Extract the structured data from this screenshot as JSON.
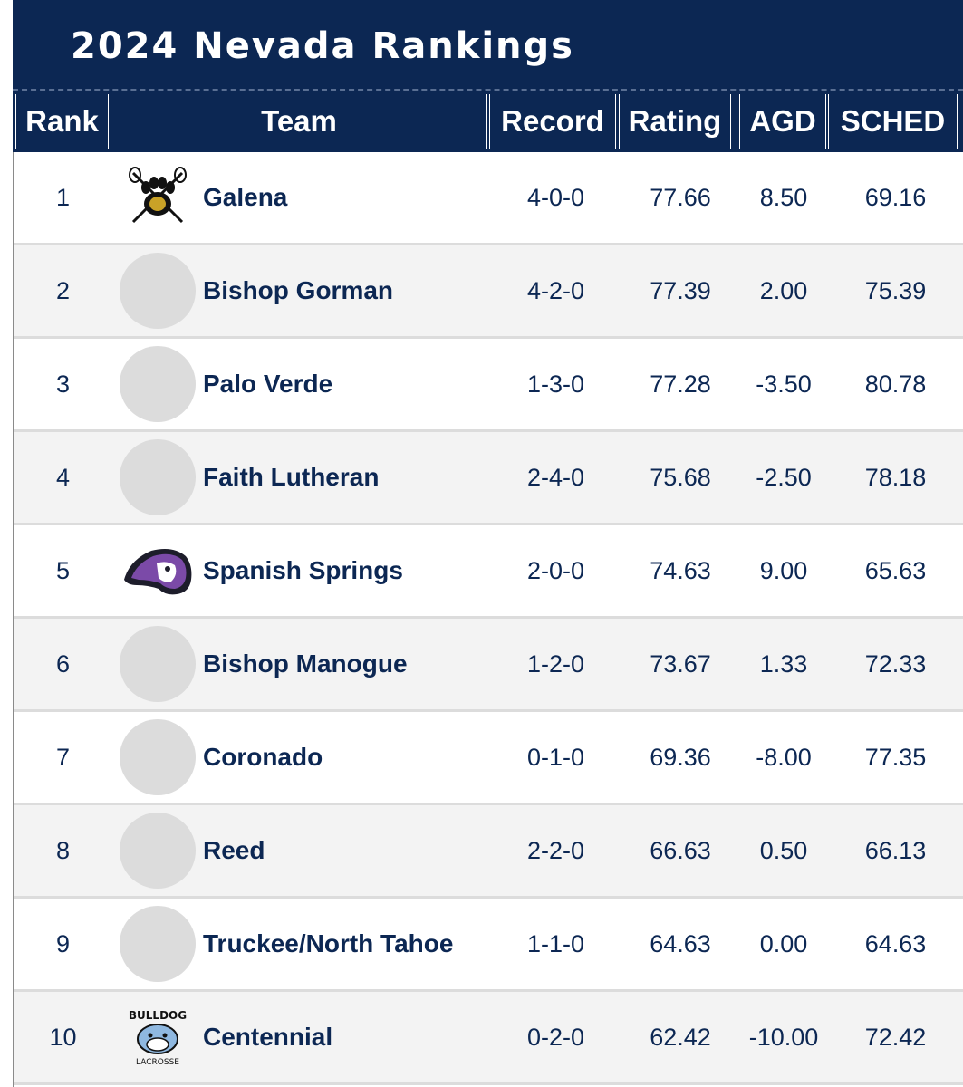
{
  "title": "2024 Nevada Rankings",
  "columns": {
    "rank": "Rank",
    "team": "Team",
    "record": "Record",
    "rating": "Rating",
    "agd": "AGD",
    "sched": "SCHED"
  },
  "rows": [
    {
      "rank": "1",
      "team": "Galena",
      "logo": "paw-lacrosse-logo",
      "record": "4-0-0",
      "rating": "77.66",
      "agd": "8.50",
      "sched": "69.16"
    },
    {
      "rank": "2",
      "team": "Bishop Gorman",
      "logo": "placeholder",
      "record": "4-2-0",
      "rating": "77.39",
      "agd": "2.00",
      "sched": "75.39"
    },
    {
      "rank": "3",
      "team": "Palo Verde",
      "logo": "placeholder",
      "record": "1-3-0",
      "rating": "77.28",
      "agd": "-3.50",
      "sched": "80.78"
    },
    {
      "rank": "4",
      "team": "Faith Lutheran",
      "logo": "placeholder",
      "record": "2-4-0",
      "rating": "75.68",
      "agd": "-2.50",
      "sched": "78.18"
    },
    {
      "rank": "5",
      "team": "Spanish Springs",
      "logo": "cougar-logo",
      "record": "2-0-0",
      "rating": "74.63",
      "agd": "9.00",
      "sched": "65.63"
    },
    {
      "rank": "6",
      "team": "Bishop Manogue",
      "logo": "placeholder",
      "record": "1-2-0",
      "rating": "73.67",
      "agd": "1.33",
      "sched": "72.33"
    },
    {
      "rank": "7",
      "team": "Coronado",
      "logo": "placeholder",
      "record": "0-1-0",
      "rating": "69.36",
      "agd": "-8.00",
      "sched": "77.35"
    },
    {
      "rank": "8",
      "team": "Reed",
      "logo": "placeholder",
      "record": "2-2-0",
      "rating": "66.63",
      "agd": "0.50",
      "sched": "66.13"
    },
    {
      "rank": "9",
      "team": "Truckee/North Tahoe",
      "logo": "placeholder",
      "record": "1-1-0",
      "rating": "64.63",
      "agd": "0.00",
      "sched": "64.63"
    },
    {
      "rank": "10",
      "team": "Centennial",
      "logo": "bulldog-lacrosse-logo",
      "logo_text_top": "BULLDOG",
      "logo_text_bottom": "LACROSSE",
      "record": "0-2-0",
      "rating": "62.42",
      "agd": "-10.00",
      "sched": "72.42"
    }
  ],
  "colors": {
    "navy": "#0c2753",
    "row_alt": "#f3f3f3",
    "placeholder": "#dcdcdc"
  }
}
